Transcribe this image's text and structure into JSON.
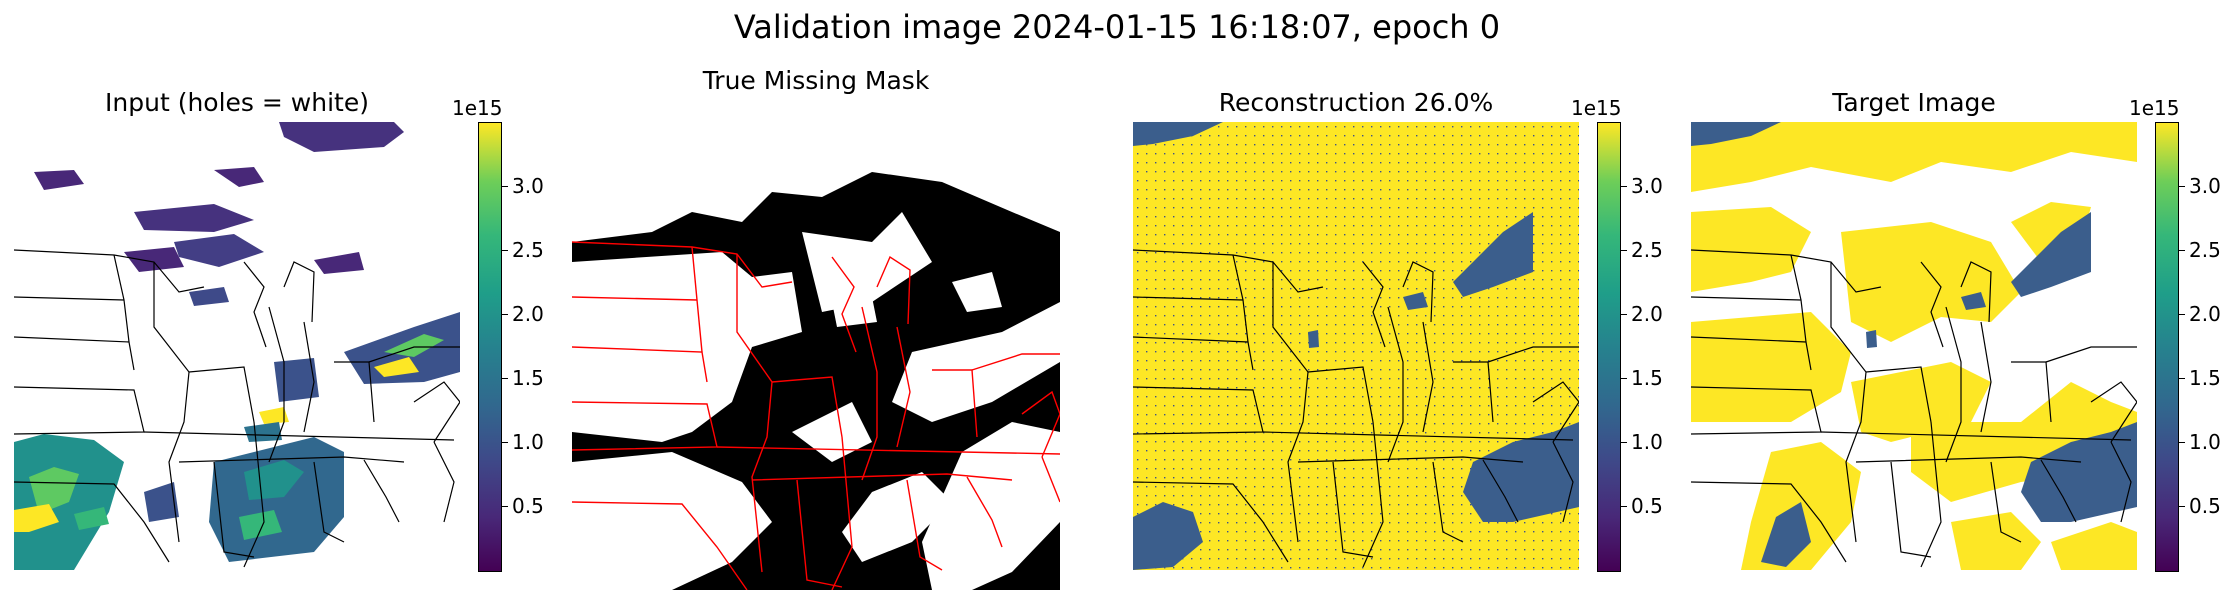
{
  "figure": {
    "suptitle": "Validation image 2024-01-15 16:18:07, epoch 0"
  },
  "colors": {
    "viridis_low": "#440154",
    "viridis_mid": "#21918c",
    "viridis_high": "#fde725",
    "recon_fill": "#fde725",
    "recon_patch": "#3b5e8c",
    "mask_valid": "#000000",
    "mask_missing": "#ffffff",
    "border_black": "#000000",
    "border_red": "#ff0000"
  },
  "chart_data": [
    {
      "type": "heatmap",
      "title": "Input (holes = white)",
      "colormap": "viridis",
      "colorbar": {
        "exponent_label": "1e15",
        "ticks": [
          "0.5",
          "1.0",
          "1.5",
          "2.0",
          "2.5",
          "3.0"
        ],
        "tick_values": [
          0.5,
          1.0,
          1.5,
          2.0,
          2.5,
          3.0
        ],
        "range": [
          0.0,
          3.5
        ]
      }
    },
    {
      "type": "heatmap",
      "title": "True Missing Mask",
      "colormap": "binary"
    },
    {
      "type": "heatmap",
      "title": "Reconstruction 26.0%",
      "colormap": "viridis",
      "colorbar": {
        "exponent_label": "1e15",
        "ticks": [
          "0.5",
          "1.0",
          "1.5",
          "2.0",
          "2.5",
          "3.0"
        ],
        "tick_values": [
          0.5,
          1.0,
          1.5,
          2.0,
          2.5,
          3.0
        ],
        "range": [
          0.0,
          3.5
        ]
      }
    },
    {
      "type": "heatmap",
      "title": "Target Image",
      "colormap": "viridis",
      "colorbar": {
        "exponent_label": "1e15",
        "ticks": [
          "0.5",
          "1.0",
          "1.5",
          "2.0",
          "2.5",
          "3.0"
        ],
        "tick_values": [
          0.5,
          1.0,
          1.5,
          2.0,
          2.5,
          3.0
        ],
        "range": [
          0.0,
          3.5
        ]
      }
    }
  ]
}
